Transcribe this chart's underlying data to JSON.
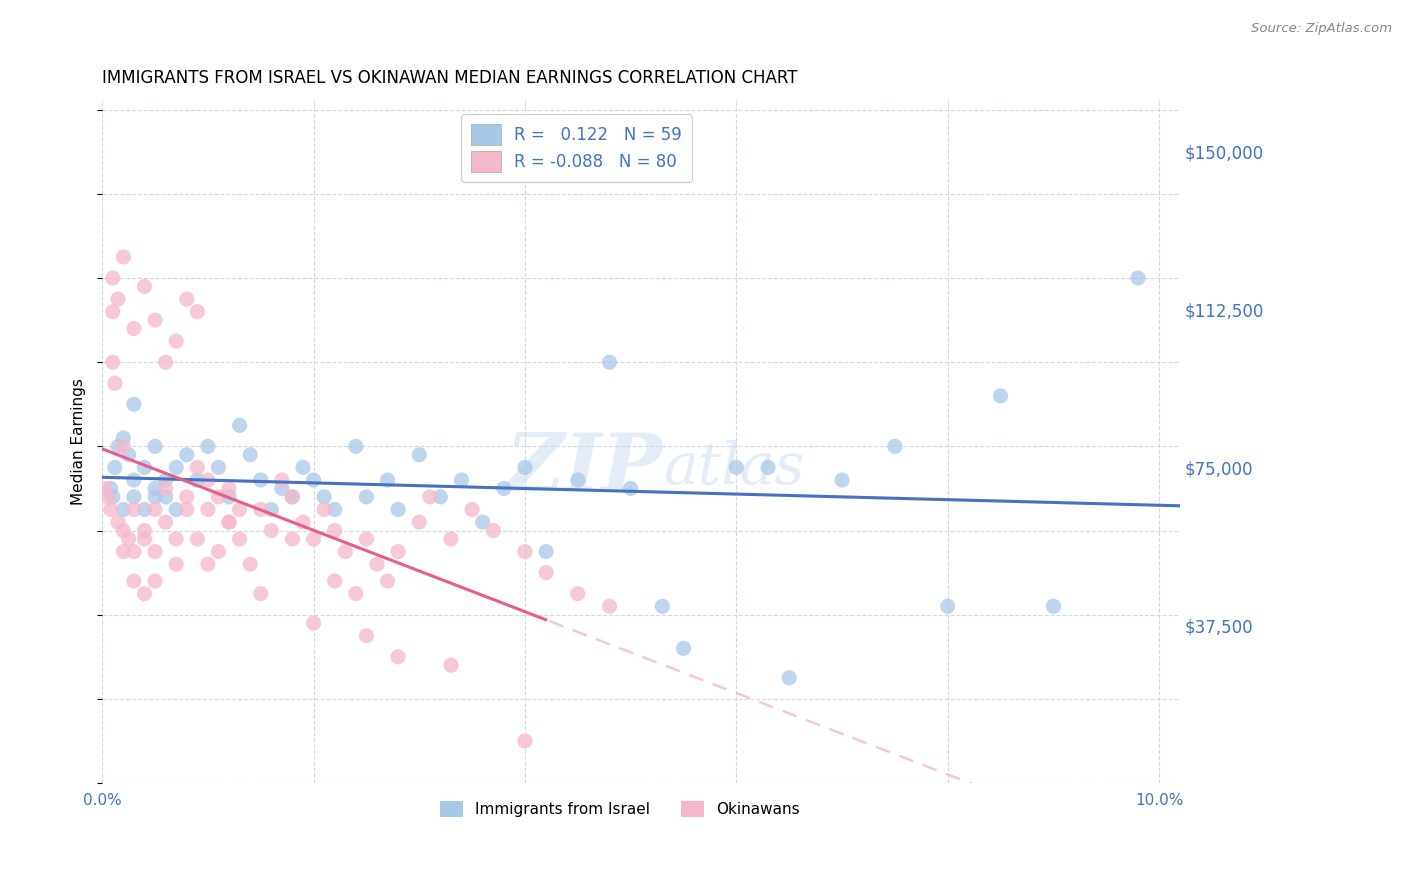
{
  "title": "IMMIGRANTS FROM ISRAEL VS OKINAWAN MEDIAN EARNINGS CORRELATION CHART",
  "source": "Source: ZipAtlas.com",
  "ylabel": "Median Earnings",
  "ytick_labels": [
    "$37,500",
    "$75,000",
    "$112,500",
    "$150,000"
  ],
  "ytick_values": [
    37500,
    75000,
    112500,
    150000
  ],
  "ylim": [
    0,
    162500
  ],
  "xlim": [
    0.0,
    0.102
  ],
  "color_blue": "#a8c8e8",
  "color_pink": "#f5b8cb",
  "color_blue_line": "#4472c4",
  "color_pink_line": "#e85d8a",
  "color_pink_dashed": "#f5b8cb",
  "watermark_zip": "ZIP",
  "watermark_atlas": "atlas",
  "israel_x": [
    0.0008,
    0.001,
    0.0012,
    0.0015,
    0.002,
    0.002,
    0.0025,
    0.003,
    0.003,
    0.003,
    0.004,
    0.004,
    0.005,
    0.005,
    0.005,
    0.006,
    0.006,
    0.007,
    0.007,
    0.008,
    0.009,
    0.01,
    0.011,
    0.012,
    0.013,
    0.014,
    0.015,
    0.016,
    0.017,
    0.018,
    0.019,
    0.02,
    0.021,
    0.022,
    0.024,
    0.025,
    0.027,
    0.028,
    0.03,
    0.032,
    0.034,
    0.036,
    0.038,
    0.04,
    0.042,
    0.045,
    0.048,
    0.05,
    0.053,
    0.055,
    0.06,
    0.063,
    0.065,
    0.07,
    0.075,
    0.08,
    0.085,
    0.09,
    0.098
  ],
  "israel_y": [
    70000,
    68000,
    75000,
    80000,
    65000,
    82000,
    78000,
    72000,
    68000,
    90000,
    65000,
    75000,
    70000,
    68000,
    80000,
    72000,
    68000,
    75000,
    65000,
    78000,
    72000,
    80000,
    75000,
    68000,
    85000,
    78000,
    72000,
    65000,
    70000,
    68000,
    75000,
    72000,
    68000,
    65000,
    80000,
    68000,
    72000,
    65000,
    78000,
    68000,
    72000,
    62000,
    70000,
    75000,
    55000,
    72000,
    100000,
    70000,
    42000,
    32000,
    75000,
    75000,
    25000,
    72000,
    80000,
    42000,
    92000,
    42000,
    120000
  ],
  "okinawan_x": [
    0.0003,
    0.0005,
    0.0008,
    0.001,
    0.001,
    0.0012,
    0.0015,
    0.002,
    0.002,
    0.002,
    0.0025,
    0.003,
    0.003,
    0.003,
    0.004,
    0.004,
    0.004,
    0.005,
    0.005,
    0.005,
    0.006,
    0.006,
    0.007,
    0.007,
    0.008,
    0.008,
    0.009,
    0.009,
    0.01,
    0.01,
    0.011,
    0.011,
    0.012,
    0.012,
    0.013,
    0.013,
    0.014,
    0.015,
    0.016,
    0.017,
    0.018,
    0.019,
    0.02,
    0.021,
    0.022,
    0.023,
    0.024,
    0.025,
    0.026,
    0.027,
    0.028,
    0.03,
    0.031,
    0.033,
    0.035,
    0.037,
    0.04,
    0.042,
    0.045,
    0.048,
    0.001,
    0.0015,
    0.002,
    0.003,
    0.004,
    0.005,
    0.006,
    0.007,
    0.008,
    0.009,
    0.01,
    0.012,
    0.015,
    0.018,
    0.02,
    0.022,
    0.025,
    0.028,
    0.033,
    0.04
  ],
  "okinawan_y": [
    70000,
    68000,
    65000,
    112000,
    100000,
    95000,
    62000,
    60000,
    55000,
    80000,
    58000,
    65000,
    55000,
    48000,
    60000,
    45000,
    58000,
    65000,
    55000,
    48000,
    70000,
    62000,
    58000,
    52000,
    65000,
    68000,
    75000,
    58000,
    72000,
    65000,
    55000,
    68000,
    62000,
    70000,
    65000,
    58000,
    52000,
    65000,
    60000,
    72000,
    68000,
    62000,
    58000,
    65000,
    60000,
    55000,
    45000,
    58000,
    52000,
    48000,
    55000,
    62000,
    68000,
    58000,
    65000,
    60000,
    55000,
    50000,
    45000,
    42000,
    120000,
    115000,
    125000,
    108000,
    118000,
    110000,
    100000,
    105000,
    115000,
    112000,
    52000,
    62000,
    45000,
    58000,
    38000,
    48000,
    35000,
    30000,
    28000,
    10000
  ]
}
